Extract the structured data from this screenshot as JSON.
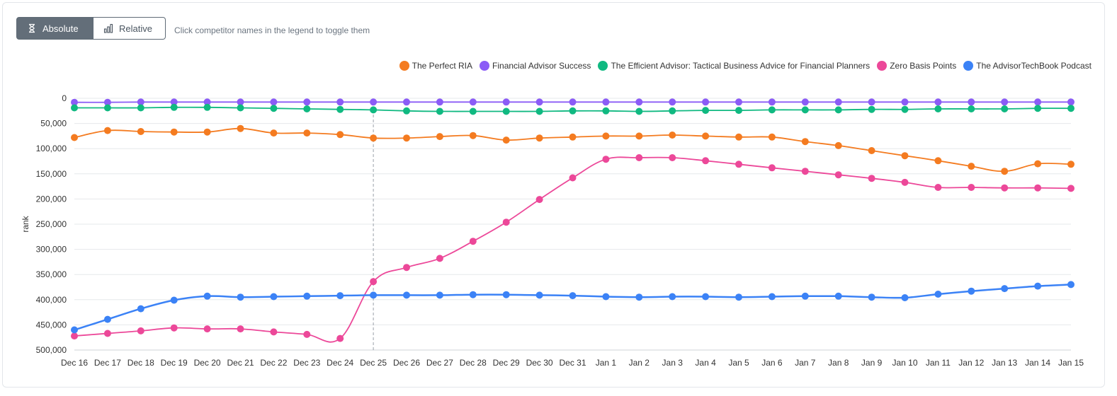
{
  "controls": {
    "absolute_label": "Absolute",
    "relative_label": "Relative",
    "hint": "Click competitor names in the legend to toggle them"
  },
  "chart_data": {
    "type": "line",
    "ylabel": "rank",
    "xlabel": "",
    "ylim": [
      0,
      500000
    ],
    "y_inverted": true,
    "y_ticks": [
      "0",
      "50,000",
      "100,000",
      "150,000",
      "200,000",
      "250,000",
      "300,000",
      "350,000",
      "400,000",
      "450,000",
      "500,000"
    ],
    "y_tick_values": [
      0,
      50000,
      100000,
      150000,
      200000,
      250000,
      300000,
      350000,
      400000,
      450000,
      500000
    ],
    "categories": [
      "Dec 16",
      "Dec 17",
      "Dec 18",
      "Dec 19",
      "Dec 20",
      "Dec 21",
      "Dec 22",
      "Dec 23",
      "Dec 24",
      "Dec 25",
      "Dec 26",
      "Dec 27",
      "Dec 28",
      "Dec 29",
      "Dec 30",
      "Dec 31",
      "Jan 1",
      "Jan 2",
      "Jan 3",
      "Jan 4",
      "Jan 5",
      "Jan 6",
      "Jan 7",
      "Jan 8",
      "Jan 9",
      "Jan 10",
      "Jan 11",
      "Jan 12",
      "Jan 13",
      "Jan 14",
      "Jan 15"
    ],
    "crosshair_category": "Dec 25",
    "legend_position": "top-right",
    "series": [
      {
        "name": "The Perfect RIA",
        "color": "#f47b20",
        "values": [
          78000,
          64000,
          66000,
          67000,
          67000,
          60000,
          69000,
          69000,
          72000,
          79000,
          79000,
          76000,
          74000,
          83000,
          79000,
          77000,
          75000,
          75000,
          73000,
          75000,
          77000,
          77000,
          86000,
          94000,
          104000,
          114000,
          124000,
          135000,
          145000,
          130000,
          131000
        ]
      },
      {
        "name": "Financial Advisor Success",
        "color": "#8b5cf6",
        "values": [
          8000,
          8000,
          7500,
          7500,
          7500,
          7500,
          7500,
          7500,
          7500,
          7500,
          7500,
          7500,
          7500,
          7500,
          7500,
          7500,
          7500,
          7500,
          7500,
          7500,
          7500,
          7500,
          7500,
          7500,
          7500,
          7500,
          7500,
          7500,
          7500,
          7500,
          7500
        ]
      },
      {
        "name": "The Efficient Advisor: Tactical Business Advice for Financial Planners",
        "color": "#10b981",
        "values": [
          19000,
          19000,
          19000,
          18000,
          18000,
          19000,
          20000,
          21000,
          22000,
          23000,
          25000,
          26000,
          26000,
          26000,
          26000,
          25000,
          25000,
          26000,
          25000,
          24000,
          24000,
          23000,
          23000,
          23000,
          22000,
          22000,
          21000,
          21000,
          21000,
          20000,
          20000
        ]
      },
      {
        "name": "Zero Basis Points",
        "color": "#ec4899",
        "values": [
          472000,
          467000,
          462000,
          456000,
          458000,
          458000,
          464000,
          469000,
          477000,
          364000,
          336000,
          318000,
          284000,
          246000,
          201000,
          158000,
          121000,
          118000,
          118000,
          124000,
          131000,
          138000,
          145000,
          152000,
          159000,
          167000,
          177000,
          177000,
          178000,
          178000,
          179000
        ]
      },
      {
        "name": "The AdvisorTechBook Podcast",
        "color": "#3b82f6",
        "values": [
          460000,
          439000,
          418000,
          401000,
          393000,
          395000,
          394000,
          393000,
          392000,
          391000,
          391000,
          391000,
          390000,
          390000,
          391000,
          392000,
          394000,
          395000,
          394000,
          394000,
          395000,
          394000,
          393000,
          393000,
          395000,
          396000,
          389000,
          383000,
          378000,
          373000,
          370000
        ]
      }
    ]
  }
}
